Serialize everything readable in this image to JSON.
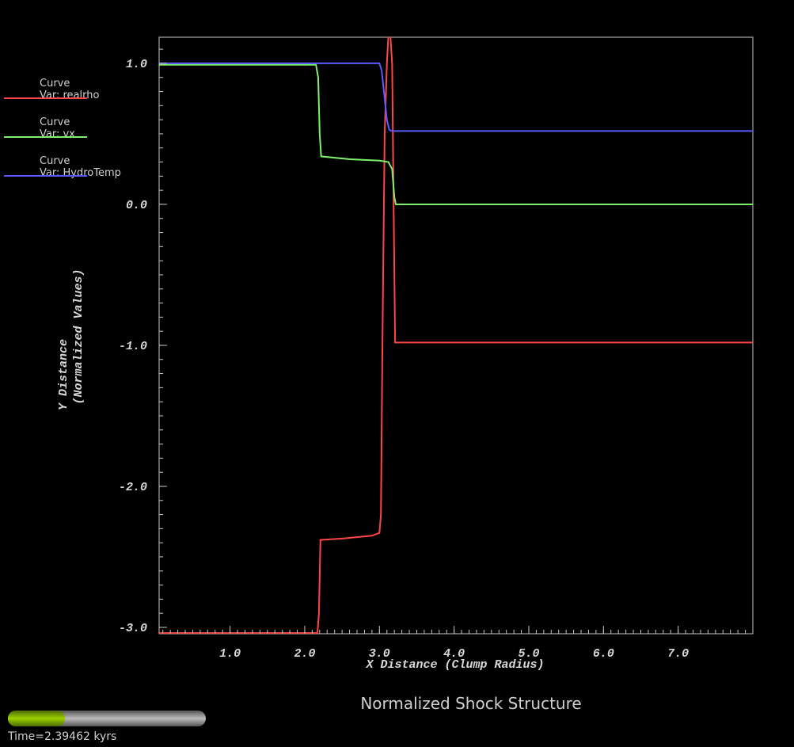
{
  "chart_data": {
    "type": "line",
    "title": "Normalized Shock Structure",
    "xlabel": "X Distance (Clump Radius)",
    "ylabel": [
      "Y Distance",
      "(Normalized Values)"
    ],
    "time_label": "Time=2.39462 kyrs",
    "xlim": [
      0.05,
      8.0
    ],
    "ylim": [
      -3.045,
      1.185
    ],
    "xticks": [
      {
        "value": 1,
        "label": "1.0"
      },
      {
        "value": 2,
        "label": "2.0"
      },
      {
        "value": 3,
        "label": "3.0"
      },
      {
        "value": 4,
        "label": "4.0"
      },
      {
        "value": 5,
        "label": "5.0"
      },
      {
        "value": 6,
        "label": "6.0"
      },
      {
        "value": 7,
        "label": "7.0"
      }
    ],
    "yticks": [
      {
        "value": 1,
        "label": "1.0"
      },
      {
        "value": 0,
        "label": "0.0"
      },
      {
        "value": -1,
        "label": "-1.0"
      },
      {
        "value": -2,
        "label": "-2.0"
      },
      {
        "value": -3,
        "label": "-3.0"
      }
    ],
    "series": [
      {
        "label": "Curve",
        "name": "Var: realrho",
        "color": "#ff4646",
        "x": [
          0.05,
          2.17,
          2.19,
          2.21,
          2.5,
          2.9,
          3.0,
          3.02,
          3.04,
          3.07,
          3.1,
          3.12,
          3.14,
          3.17,
          3.19,
          3.21,
          8.0
        ],
        "values": [
          -3.04,
          -3.04,
          -2.9,
          -2.38,
          -2.37,
          -2.35,
          -2.33,
          -2.2,
          -1.0,
          0.5,
          1.0,
          1.2,
          1.25,
          1.0,
          0.0,
          -0.98,
          -0.98
        ]
      },
      {
        "label": "Curve",
        "name": "Var: vx",
        "color": "#7ff06e",
        "x": [
          0.05,
          2.15,
          2.18,
          2.2,
          2.22,
          2.6,
          3.0,
          3.12,
          3.17,
          3.2,
          3.22,
          8.0
        ],
        "values": [
          0.99,
          0.99,
          0.9,
          0.5,
          0.34,
          0.32,
          0.31,
          0.3,
          0.25,
          0.05,
          0.0,
          0.0
        ]
      },
      {
        "label": "Curve",
        "name": "Var: HydroTemp",
        "color": "#5a5aff",
        "x": [
          0.05,
          3.0,
          3.03,
          3.07,
          3.1,
          3.13,
          3.16,
          8.0
        ],
        "values": [
          1.0,
          1.0,
          0.95,
          0.75,
          0.6,
          0.53,
          0.52,
          0.52
        ]
      }
    ]
  }
}
